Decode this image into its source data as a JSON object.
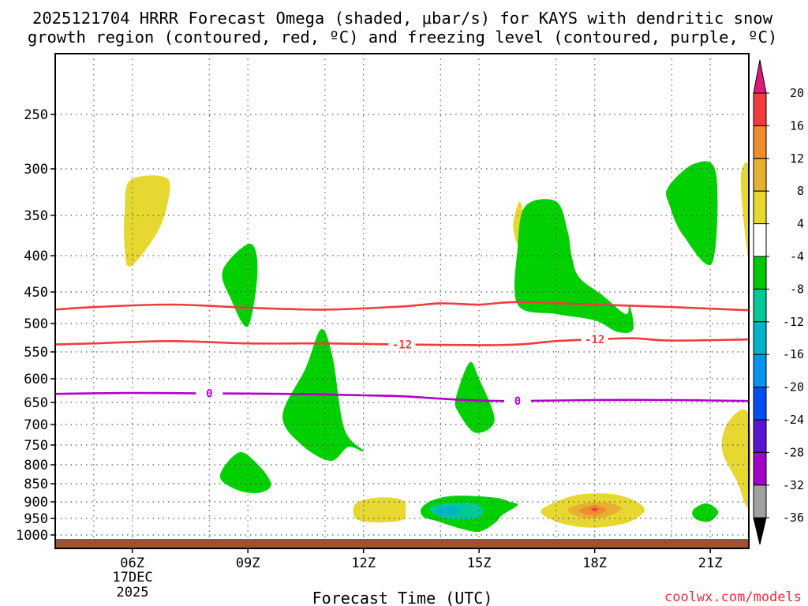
{
  "title_line1": "2025121704 HRRR Forecast Omega (shaded, μbar/s) for KAYS with dendritic snow",
  "title_line2": "growth region (contoured, red, ºC) and freezing level (contoured, purple, ºC)",
  "xlabel": "Forecast Time (UTC)",
  "date_label_line1": "17DEC",
  "date_label_line2": "2025",
  "credit": "coolwx.com/models",
  "chart_data": {
    "type": "heatmap",
    "x_unit": "hour UTC on 17DEC2025",
    "y_unit": "pressure (hPa)",
    "xlim": [
      4.0,
      22.0
    ],
    "ylim": [
      1010,
      200
    ],
    "x_ticks": [
      {
        "v": 6,
        "label": "06Z"
      },
      {
        "v": 9,
        "label": "09Z"
      },
      {
        "v": 12,
        "label": "12Z"
      },
      {
        "v": 15,
        "label": "15Z"
      },
      {
        "v": 18,
        "label": "18Z"
      },
      {
        "v": 21,
        "label": "21Z"
      }
    ],
    "y_ticks": [
      250,
      300,
      350,
      400,
      450,
      500,
      550,
      600,
      650,
      700,
      750,
      800,
      850,
      900,
      950,
      1000
    ],
    "grid": true,
    "colorbar": {
      "labels": [
        "20",
        "16",
        "12",
        "8",
        "4",
        "-4",
        "-8",
        "-12",
        "-16",
        "-20",
        "-24",
        "-28",
        "-32",
        "-36"
      ],
      "colors": [
        "#e0187a",
        "#f03c3c",
        "#f08c2c",
        "#e8b030",
        "#e8d830",
        "#ffffff",
        "#00c800",
        "#00c896",
        "#00b4c8",
        "#0096f0",
        "#0050f0",
        "#5a14d2",
        "#a000c8",
        "#a0a0a0",
        "#000000"
      ]
    },
    "omega_regions": [
      {
        "level": 4,
        "color": "#e6d830",
        "pts": [
          [
            5.8,
            345
          ],
          [
            5.95,
            312
          ],
          [
            6.9,
            310
          ],
          [
            6.9,
            340
          ],
          [
            6.6,
            375
          ],
          [
            5.95,
            415
          ],
          [
            5.8,
            390
          ]
        ]
      },
      {
        "level": -4,
        "color": "#00d000",
        "pts": [
          [
            8.35,
            420
          ],
          [
            9.05,
            385
          ],
          [
            9.25,
            420
          ],
          [
            9.0,
            505
          ],
          [
            8.55,
            460
          ]
        ]
      },
      {
        "level": -4,
        "color": "#00d000",
        "pts": [
          [
            9.9,
            680
          ],
          [
            10.5,
            580
          ],
          [
            10.9,
            510
          ],
          [
            11.2,
            560
          ],
          [
            11.5,
            710
          ],
          [
            12.0,
            765
          ],
          [
            11.6,
            755
          ],
          [
            11.15,
            790
          ],
          [
            10.4,
            750
          ]
        ]
      },
      {
        "level": -4,
        "color": "#00d000",
        "pts": [
          [
            8.3,
            820
          ],
          [
            8.6,
            780
          ],
          [
            8.9,
            770
          ],
          [
            9.4,
            815
          ],
          [
            9.6,
            855
          ],
          [
            9.3,
            875
          ],
          [
            8.8,
            870
          ],
          [
            8.35,
            845
          ]
        ]
      },
      {
        "level": 4,
        "color": "#e6d830",
        "pts": [
          [
            11.8,
            905
          ],
          [
            12.4,
            888
          ],
          [
            13.0,
            895
          ],
          [
            13.1,
            925
          ],
          [
            13.0,
            955
          ],
          [
            12.3,
            962
          ],
          [
            11.8,
            950
          ]
        ]
      },
      {
        "level": -4,
        "color": "#00d000",
        "pts": [
          [
            14.4,
            640
          ],
          [
            14.75,
            570
          ],
          [
            15.0,
            600
          ],
          [
            15.4,
            690
          ],
          [
            14.9,
            720
          ],
          [
            14.45,
            670
          ]
        ]
      },
      {
        "level": -4,
        "color": "#00d000",
        "pts": [
          [
            13.5,
            920
          ],
          [
            13.8,
            895
          ],
          [
            14.4,
            883
          ],
          [
            15.4,
            888
          ],
          [
            15.8,
            900
          ],
          [
            16.0,
            910
          ],
          [
            15.6,
            940
          ],
          [
            15.4,
            965
          ],
          [
            15.0,
            990
          ],
          [
            14.5,
            980
          ],
          [
            13.9,
            958
          ],
          [
            13.55,
            945
          ]
        ]
      },
      {
        "level": -8,
        "color": "#00c896",
        "pts": [
          [
            13.7,
            920
          ],
          [
            14.1,
            905
          ],
          [
            14.9,
            905
          ],
          [
            15.1,
            930
          ],
          [
            14.9,
            950
          ],
          [
            14.1,
            950
          ]
        ]
      },
      {
        "level": -12,
        "color": "#00b4c8",
        "pts": [
          [
            13.85,
            925
          ],
          [
            14.2,
            913
          ],
          [
            14.5,
            920
          ],
          [
            14.4,
            940
          ],
          [
            14.0,
            940
          ]
        ]
      },
      {
        "level": 4,
        "color": "#e6d830",
        "pts": [
          [
            15.9,
            355
          ],
          [
            16.05,
            335
          ],
          [
            16.15,
            350
          ],
          [
            16.1,
            370
          ],
          [
            16.0,
            385
          ],
          [
            15.9,
            370
          ]
        ]
      },
      {
        "level": -4,
        "color": "#00d000",
        "pts": [
          [
            16.0,
            390
          ],
          [
            16.2,
            340
          ],
          [
            17.0,
            335
          ],
          [
            17.3,
            370
          ],
          [
            17.4,
            400
          ],
          [
            17.6,
            430
          ],
          [
            18.2,
            455
          ],
          [
            18.8,
            485
          ],
          [
            18.9,
            470
          ],
          [
            19.0,
            510
          ],
          [
            18.6,
            515
          ],
          [
            18.0,
            495
          ],
          [
            17.0,
            485
          ],
          [
            16.0,
            470
          ]
        ]
      },
      {
        "level": 4,
        "color": "#e6d830",
        "pts": [
          [
            16.6,
            928
          ],
          [
            17.0,
            900
          ],
          [
            17.6,
            880
          ],
          [
            18.4,
            878
          ],
          [
            19.0,
            895
          ],
          [
            19.3,
            925
          ],
          [
            19.0,
            955
          ],
          [
            18.6,
            970
          ],
          [
            18.0,
            978
          ],
          [
            17.4,
            972
          ],
          [
            16.9,
            955
          ]
        ]
      },
      {
        "level": 8,
        "color": "#e8b030",
        "pts": [
          [
            17.3,
            925
          ],
          [
            17.7,
            905
          ],
          [
            18.3,
            902
          ],
          [
            18.7,
            920
          ],
          [
            18.3,
            945
          ],
          [
            17.7,
            948
          ]
        ]
      },
      {
        "level": 12,
        "color": "#f08c2c",
        "pts": [
          [
            17.6,
            925
          ],
          [
            17.9,
            912
          ],
          [
            18.2,
            915
          ],
          [
            18.3,
            925
          ],
          [
            18.1,
            938
          ],
          [
            17.8,
            938
          ]
        ]
      },
      {
        "level": 16,
        "color": "#f03c3c",
        "pts": [
          [
            17.9,
            922
          ],
          [
            18.0,
            918
          ],
          [
            18.1,
            922
          ],
          [
            18.0,
            928
          ]
        ]
      },
      {
        "level": -4,
        "color": "#00d000",
        "pts": [
          [
            19.9,
            320
          ],
          [
            20.6,
            295
          ],
          [
            21.15,
            305
          ],
          [
            21.05,
            410
          ],
          [
            20.3,
            375
          ],
          [
            19.95,
            340
          ]
        ]
      },
      {
        "level": -4,
        "color": "#00d000",
        "pts": [
          [
            20.55,
            925
          ],
          [
            20.85,
            905
          ],
          [
            21.1,
            915
          ],
          [
            21.2,
            935
          ],
          [
            20.95,
            960
          ],
          [
            20.6,
            950
          ]
        ]
      },
      {
        "level": 4,
        "color": "#e6d830",
        "pts": [
          [
            21.8,
            305
          ],
          [
            22.0,
            300
          ],
          [
            22.0,
            400
          ],
          [
            21.85,
            350
          ]
        ]
      },
      {
        "level": 4,
        "color": "#e6d830",
        "pts": [
          [
            21.3,
            760
          ],
          [
            21.5,
            690
          ],
          [
            22.0,
            680
          ],
          [
            22.0,
            910
          ],
          [
            21.7,
            845
          ]
        ]
      }
    ],
    "contours": [
      {
        "name": "dgz-upper",
        "color": "#f03c3c",
        "label": "",
        "pts": [
          [
            4.0,
            478
          ],
          [
            5.0,
            474
          ],
          [
            7.0,
            470
          ],
          [
            9.0,
            475
          ],
          [
            11.0,
            478
          ],
          [
            13.0,
            473
          ],
          [
            14.0,
            468
          ],
          [
            15.0,
            470
          ],
          [
            16.0,
            466
          ],
          [
            18.0,
            470
          ],
          [
            20.0,
            474
          ],
          [
            22.0,
            479
          ]
        ]
      },
      {
        "name": "dgz-lower",
        "color": "#f03c3c",
        "label": "-12",
        "label_xs": [
          13.0,
          18.0
        ],
        "pts": [
          [
            4.0,
            537
          ],
          [
            5.0,
            535
          ],
          [
            7.0,
            531
          ],
          [
            9.0,
            535
          ],
          [
            11.0,
            535
          ],
          [
            13.0,
            537
          ],
          [
            15.0,
            538
          ],
          [
            16.0,
            537
          ],
          [
            17.0,
            531
          ],
          [
            18.0,
            528
          ],
          [
            19.0,
            526
          ],
          [
            20.0,
            530
          ],
          [
            22.0,
            528
          ]
        ]
      },
      {
        "name": "freezing-level",
        "color": "#b000c8",
        "label": "0",
        "label_xs": [
          8.0,
          16.0
        ],
        "pts": [
          [
            4.0,
            632
          ],
          [
            6.0,
            630
          ],
          [
            8.0,
            631
          ],
          [
            10.0,
            632
          ],
          [
            12.0,
            635
          ],
          [
            13.0,
            637
          ],
          [
            14.0,
            642
          ],
          [
            15.0,
            646
          ],
          [
            16.0,
            647
          ],
          [
            18.0,
            645
          ],
          [
            20.0,
            645
          ],
          [
            22.0,
            647
          ]
        ]
      }
    ],
    "terrain_top_hpa": 1008
  }
}
